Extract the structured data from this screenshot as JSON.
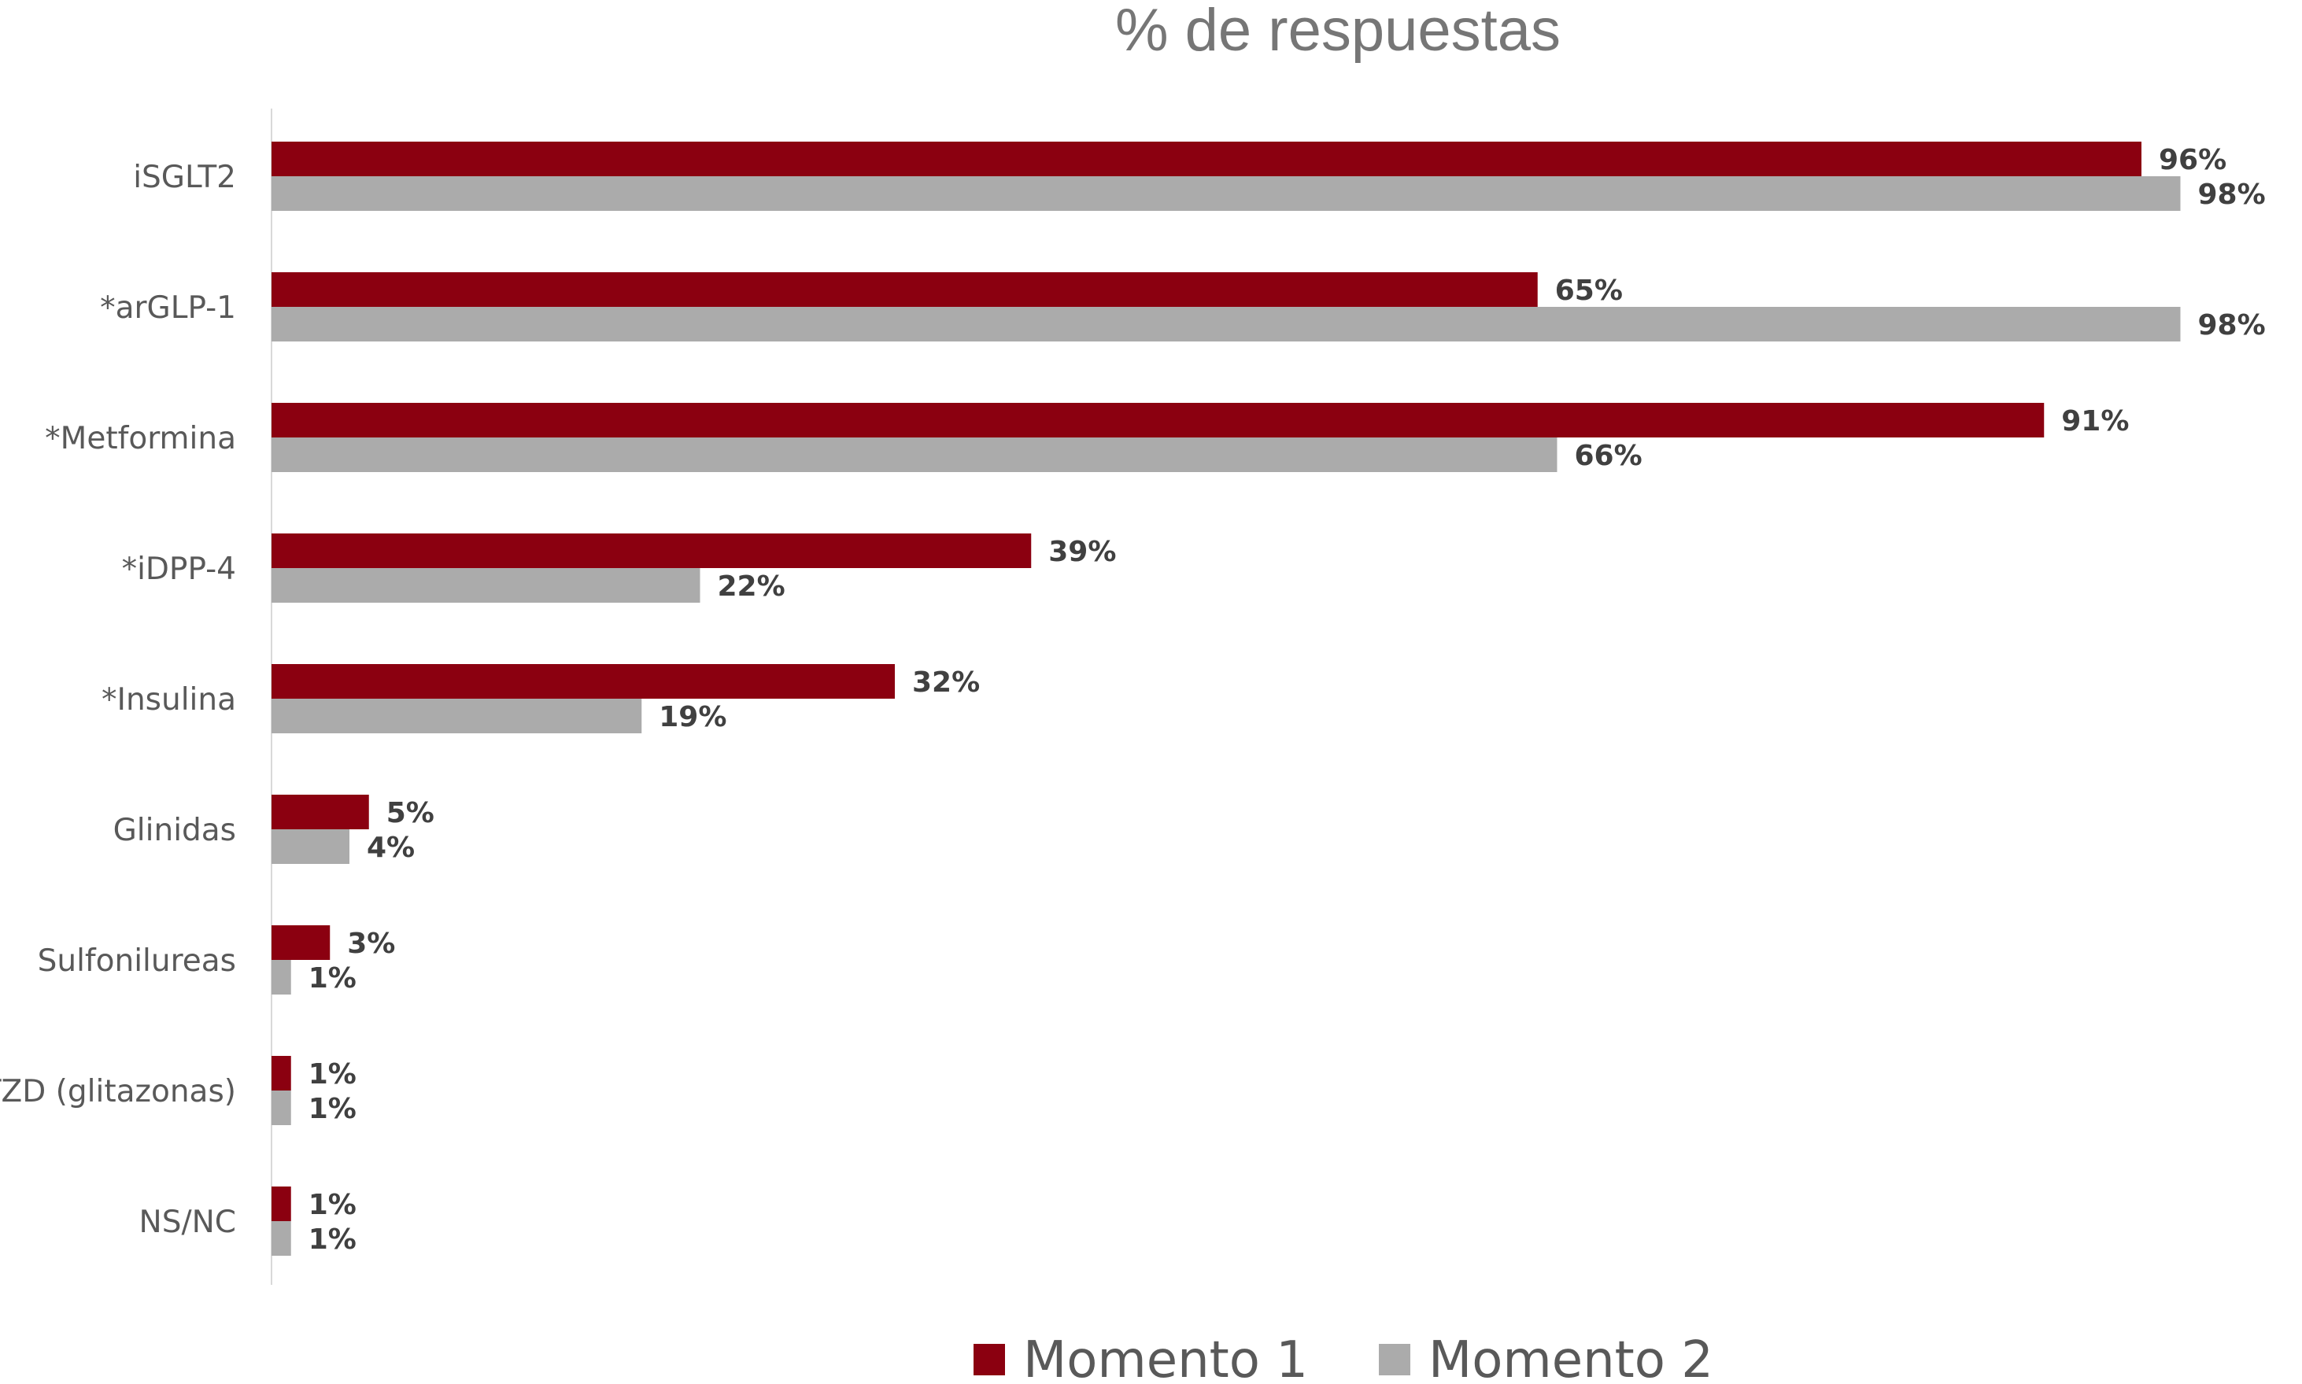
{
  "chart_data": {
    "type": "bar",
    "orientation": "horizontal",
    "title": "% de respuestas",
    "categories": [
      "iSGLT2",
      "*arGLP-1",
      "*Metformina",
      "*iDPP-4",
      "*Insulina",
      "Glinidas",
      "Sulfonilureas",
      "TZD (glitazonas)",
      "NS/NC"
    ],
    "series": [
      {
        "name": "Momento 1",
        "color": "#8B0010",
        "values": [
          96,
          65,
          91,
          39,
          32,
          5,
          3,
          1,
          1
        ],
        "labels": [
          "96%",
          "65%",
          "91%",
          "39%",
          "32%",
          "5%",
          "3%",
          "1%",
          "1%"
        ]
      },
      {
        "name": "Momento 2",
        "color": "#ABABAB",
        "values": [
          98,
          98,
          66,
          22,
          19,
          4,
          1,
          1,
          1
        ],
        "labels": [
          "98%",
          "98%",
          "66%",
          "22%",
          "19%",
          "4%",
          "1%",
          "1%",
          "1%"
        ]
      }
    ],
    "xlim": [
      0,
      100
    ],
    "grid": false,
    "legend_position": "bottom"
  }
}
